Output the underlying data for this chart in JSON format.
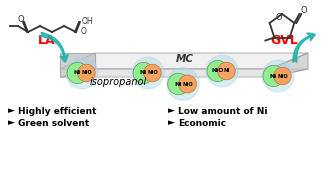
{
  "background_color": "#ffffff",
  "la_label": "LA",
  "gvl_label": "GVL",
  "mc_label": "MC",
  "isopropanol_label": "isopropanol",
  "bullet_items_left": [
    "Highly efficient",
    "Green solvent"
  ],
  "bullet_items_right": [
    "Low amount of Ni",
    "Economic"
  ],
  "ni_color": "#90ee90",
  "nio_color": "#f4a460",
  "ni_halo_color": "#add8e6",
  "platform_fill": "#d3d3d3",
  "platform_edge": "#909090",
  "arrow_color": "#20b2aa",
  "label_color_red": "#ff0000",
  "mol_color": "#333333"
}
